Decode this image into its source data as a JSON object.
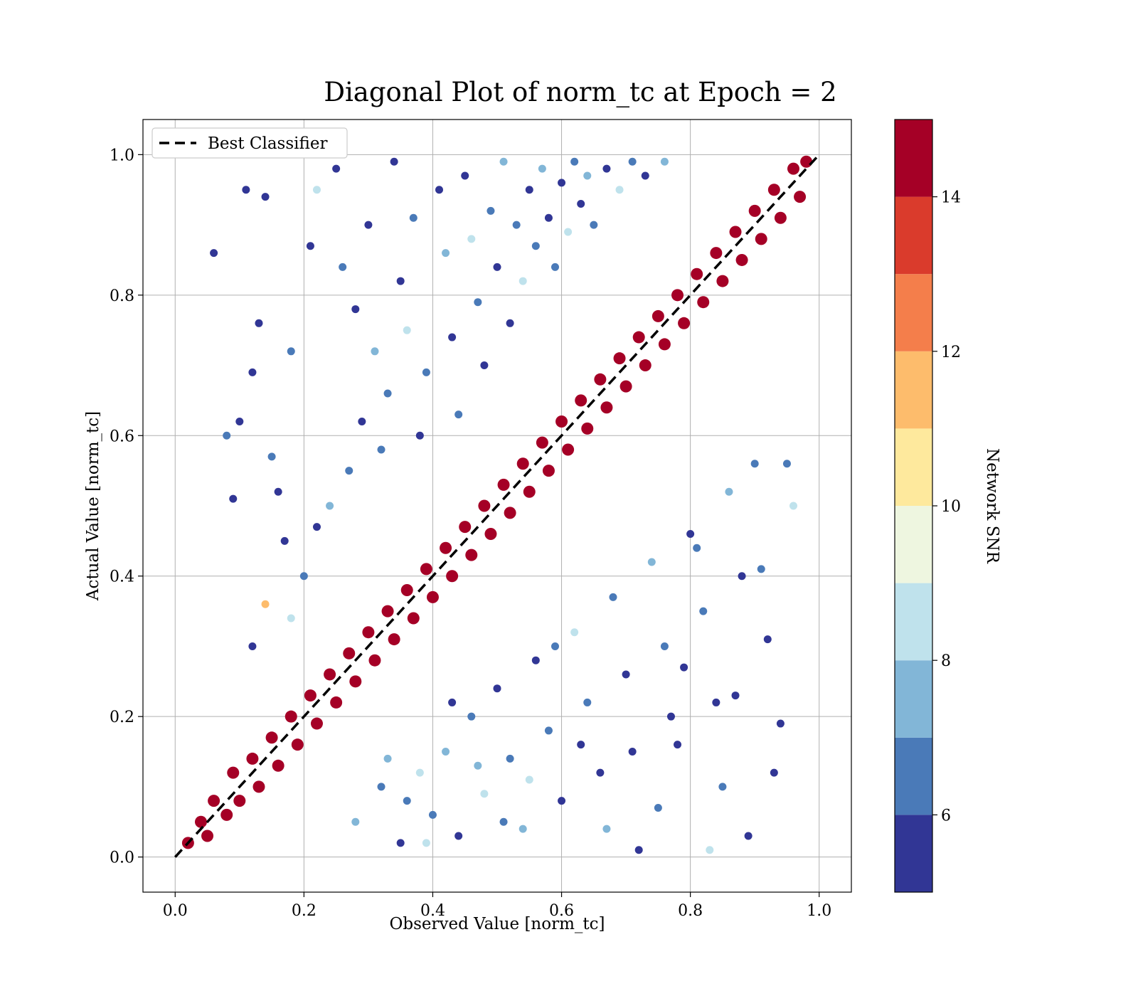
{
  "chart_data": {
    "type": "scatter",
    "title": "Diagonal Plot of norm_tc at Epoch = 2",
    "xlabel": "Observed Value [norm_tc]",
    "ylabel": "Actual Value [norm_tc]",
    "xlim": [
      -0.05,
      1.05
    ],
    "ylim": [
      -0.05,
      1.05
    ],
    "xticks": [
      "0.0",
      "0.2",
      "0.4",
      "0.6",
      "0.8",
      "1.0"
    ],
    "yticks": [
      "0.0",
      "0.2",
      "0.4",
      "0.6",
      "0.8",
      "1.0"
    ],
    "tick_values": [
      0.0,
      0.2,
      0.4,
      0.6,
      0.8,
      1.0
    ],
    "grid": true,
    "legend": {
      "position": "top-left",
      "entries": [
        {
          "label": "Best Classifier",
          "style": "black dashed line"
        }
      ]
    },
    "reference_line": {
      "name": "Best Classifier",
      "x": [
        0.0,
        1.0
      ],
      "y": [
        0.0,
        1.0
      ],
      "color": "#000000"
    },
    "colorbar": {
      "label": "Network SNR",
      "ticks": [
        "6",
        "8",
        "10",
        "12",
        "14"
      ],
      "tick_values": [
        6,
        8,
        10,
        12,
        14
      ],
      "range": [
        5,
        15
      ],
      "bands": [
        {
          "from": 5,
          "to": 6,
          "color": "#313695"
        },
        {
          "from": 6,
          "to": 7,
          "color": "#4a7ab8"
        },
        {
          "from": 7,
          "to": 8,
          "color": "#82b6d7"
        },
        {
          "from": 8,
          "to": 9,
          "color": "#bfe2ec"
        },
        {
          "from": 9,
          "to": 10,
          "color": "#eef6e0"
        },
        {
          "from": 10,
          "to": 11,
          "color": "#fee99d"
        },
        {
          "from": 11,
          "to": 12,
          "color": "#fdbc6c"
        },
        {
          "from": 12,
          "to": 13,
          "color": "#f47e4b"
        },
        {
          "from": 13,
          "to": 14,
          "color": "#da3b2c"
        },
        {
          "from": 14,
          "to": 15,
          "color": "#a50026"
        }
      ]
    },
    "series": [
      {
        "description": "dense diagonal band of high-SNR points along the x=y line",
        "points": [
          [
            0.02,
            0.02,
            15
          ],
          [
            0.04,
            0.05,
            15
          ],
          [
            0.05,
            0.03,
            15
          ],
          [
            0.06,
            0.08,
            15
          ],
          [
            0.08,
            0.06,
            15
          ],
          [
            0.09,
            0.12,
            15
          ],
          [
            0.1,
            0.08,
            15
          ],
          [
            0.12,
            0.14,
            15
          ],
          [
            0.13,
            0.1,
            15
          ],
          [
            0.15,
            0.17,
            15
          ],
          [
            0.16,
            0.13,
            15
          ],
          [
            0.18,
            0.2,
            15
          ],
          [
            0.19,
            0.16,
            15
          ],
          [
            0.21,
            0.23,
            15
          ],
          [
            0.22,
            0.19,
            15
          ],
          [
            0.24,
            0.26,
            15
          ],
          [
            0.25,
            0.22,
            15
          ],
          [
            0.27,
            0.29,
            15
          ],
          [
            0.28,
            0.25,
            15
          ],
          [
            0.3,
            0.32,
            15
          ],
          [
            0.31,
            0.28,
            15
          ],
          [
            0.33,
            0.35,
            15
          ],
          [
            0.34,
            0.31,
            15
          ],
          [
            0.36,
            0.38,
            15
          ],
          [
            0.37,
            0.34,
            15
          ],
          [
            0.39,
            0.41,
            15
          ],
          [
            0.4,
            0.37,
            15
          ],
          [
            0.42,
            0.44,
            15
          ],
          [
            0.43,
            0.4,
            15
          ],
          [
            0.45,
            0.47,
            15
          ],
          [
            0.46,
            0.43,
            15
          ],
          [
            0.48,
            0.5,
            15
          ],
          [
            0.49,
            0.46,
            15
          ],
          [
            0.51,
            0.53,
            15
          ],
          [
            0.52,
            0.49,
            15
          ],
          [
            0.54,
            0.56,
            15
          ],
          [
            0.55,
            0.52,
            15
          ],
          [
            0.57,
            0.59,
            15
          ],
          [
            0.58,
            0.55,
            15
          ],
          [
            0.6,
            0.62,
            15
          ],
          [
            0.61,
            0.58,
            15
          ],
          [
            0.63,
            0.65,
            15
          ],
          [
            0.64,
            0.61,
            15
          ],
          [
            0.66,
            0.68,
            15
          ],
          [
            0.67,
            0.64,
            15
          ],
          [
            0.69,
            0.71,
            15
          ],
          [
            0.7,
            0.67,
            15
          ],
          [
            0.72,
            0.74,
            15
          ],
          [
            0.73,
            0.7,
            15
          ],
          [
            0.75,
            0.77,
            15
          ],
          [
            0.76,
            0.73,
            15
          ],
          [
            0.78,
            0.8,
            15
          ],
          [
            0.79,
            0.76,
            15
          ],
          [
            0.81,
            0.83,
            15
          ],
          [
            0.82,
            0.79,
            15
          ],
          [
            0.84,
            0.86,
            15
          ],
          [
            0.85,
            0.82,
            15
          ],
          [
            0.87,
            0.89,
            15
          ],
          [
            0.88,
            0.85,
            15
          ],
          [
            0.9,
            0.92,
            15
          ],
          [
            0.91,
            0.88,
            15
          ],
          [
            0.93,
            0.95,
            15
          ],
          [
            0.94,
            0.91,
            15
          ],
          [
            0.96,
            0.98,
            15
          ],
          [
            0.97,
            0.94,
            15
          ],
          [
            0.98,
            0.99,
            15
          ]
        ]
      },
      {
        "description": "scattered lower-SNR points above the diagonal (upper-left region)",
        "points": [
          [
            0.06,
            0.86,
            5
          ],
          [
            0.11,
            0.95,
            5
          ],
          [
            0.14,
            0.94,
            5
          ],
          [
            0.13,
            0.76,
            5
          ],
          [
            0.12,
            0.69,
            5
          ],
          [
            0.1,
            0.62,
            5
          ],
          [
            0.08,
            0.6,
            6
          ],
          [
            0.09,
            0.51,
            5
          ],
          [
            0.15,
            0.57,
            6
          ],
          [
            0.16,
            0.52,
            5
          ],
          [
            0.18,
            0.72,
            6
          ],
          [
            0.21,
            0.87,
            5
          ],
          [
            0.22,
            0.95,
            8
          ],
          [
            0.25,
            0.98,
            5
          ],
          [
            0.26,
            0.84,
            6
          ],
          [
            0.28,
            0.78,
            5
          ],
          [
            0.3,
            0.9,
            5
          ],
          [
            0.31,
            0.72,
            7
          ],
          [
            0.33,
            0.66,
            6
          ],
          [
            0.34,
            0.99,
            5
          ],
          [
            0.35,
            0.82,
            5
          ],
          [
            0.36,
            0.75,
            8
          ],
          [
            0.37,
            0.91,
            6
          ],
          [
            0.38,
            0.6,
            5
          ],
          [
            0.39,
            0.69,
            6
          ],
          [
            0.41,
            0.95,
            5
          ],
          [
            0.42,
            0.86,
            7
          ],
          [
            0.43,
            0.74,
            5
          ],
          [
            0.44,
            0.63,
            6
          ],
          [
            0.45,
            0.97,
            5
          ],
          [
            0.46,
            0.88,
            8
          ],
          [
            0.47,
            0.79,
            6
          ],
          [
            0.48,
            0.7,
            5
          ],
          [
            0.49,
            0.92,
            6
          ],
          [
            0.5,
            0.84,
            5
          ],
          [
            0.51,
            0.99,
            7
          ],
          [
            0.52,
            0.76,
            5
          ],
          [
            0.53,
            0.9,
            6
          ],
          [
            0.54,
            0.82,
            8
          ],
          [
            0.55,
            0.95,
            5
          ],
          [
            0.56,
            0.87,
            6
          ],
          [
            0.57,
            0.98,
            7
          ],
          [
            0.58,
            0.91,
            5
          ],
          [
            0.59,
            0.84,
            6
          ],
          [
            0.6,
            0.96,
            5
          ],
          [
            0.61,
            0.89,
            8
          ],
          [
            0.62,
            0.99,
            6
          ],
          [
            0.63,
            0.93,
            5
          ],
          [
            0.64,
            0.97,
            7
          ],
          [
            0.65,
            0.9,
            6
          ],
          [
            0.67,
            0.98,
            5
          ],
          [
            0.69,
            0.95,
            8
          ],
          [
            0.71,
            0.99,
            6
          ],
          [
            0.73,
            0.97,
            5
          ],
          [
            0.76,
            0.99,
            7
          ],
          [
            0.2,
            0.4,
            6
          ],
          [
            0.22,
            0.47,
            5
          ],
          [
            0.18,
            0.34,
            8
          ],
          [
            0.27,
            0.55,
            6
          ],
          [
            0.29,
            0.62,
            5
          ],
          [
            0.24,
            0.5,
            7
          ],
          [
            0.32,
            0.58,
            6
          ],
          [
            0.17,
            0.45,
            5
          ],
          [
            0.14,
            0.36,
            11
          ],
          [
            0.12,
            0.3,
            5
          ]
        ]
      },
      {
        "description": "scattered lower-SNR points below the diagonal (lower-right region)",
        "points": [
          [
            0.28,
            0.05,
            7
          ],
          [
            0.32,
            0.1,
            6
          ],
          [
            0.35,
            0.02,
            5
          ],
          [
            0.38,
            0.12,
            8
          ],
          [
            0.4,
            0.06,
            6
          ],
          [
            0.42,
            0.15,
            7
          ],
          [
            0.44,
            0.03,
            5
          ],
          [
            0.46,
            0.2,
            6
          ],
          [
            0.48,
            0.09,
            8
          ],
          [
            0.5,
            0.24,
            5
          ],
          [
            0.52,
            0.14,
            6
          ],
          [
            0.54,
            0.04,
            7
          ],
          [
            0.56,
            0.28,
            5
          ],
          [
            0.58,
            0.18,
            6
          ],
          [
            0.6,
            0.08,
            5
          ],
          [
            0.62,
            0.32,
            8
          ],
          [
            0.64,
            0.22,
            6
          ],
          [
            0.66,
            0.12,
            5
          ],
          [
            0.68,
            0.37,
            6
          ],
          [
            0.7,
            0.26,
            5
          ],
          [
            0.72,
            0.01,
            5
          ],
          [
            0.74,
            0.42,
            7
          ],
          [
            0.76,
            0.3,
            6
          ],
          [
            0.78,
            0.16,
            5
          ],
          [
            0.8,
            0.46,
            5
          ],
          [
            0.82,
            0.35,
            6
          ],
          [
            0.84,
            0.22,
            5
          ],
          [
            0.86,
            0.52,
            7
          ],
          [
            0.88,
            0.4,
            5
          ],
          [
            0.9,
            0.56,
            6
          ],
          [
            0.92,
            0.31,
            5
          ],
          [
            0.94,
            0.19,
            5
          ],
          [
            0.95,
            0.56,
            6
          ],
          [
            0.96,
            0.5,
            8
          ],
          [
            0.89,
            0.03,
            5
          ],
          [
            0.85,
            0.1,
            6
          ],
          [
            0.83,
            0.01,
            8
          ],
          [
            0.79,
            0.27,
            5
          ],
          [
            0.75,
            0.07,
            6
          ],
          [
            0.71,
            0.15,
            5
          ],
          [
            0.67,
            0.04,
            7
          ],
          [
            0.63,
            0.16,
            5
          ],
          [
            0.59,
            0.3,
            6
          ],
          [
            0.55,
            0.11,
            8
          ],
          [
            0.51,
            0.05,
            6
          ],
          [
            0.47,
            0.13,
            7
          ],
          [
            0.43,
            0.22,
            5
          ],
          [
            0.39,
            0.02,
            8
          ],
          [
            0.36,
            0.08,
            6
          ],
          [
            0.33,
            0.14,
            7
          ],
          [
            0.87,
            0.23,
            5
          ],
          [
            0.91,
            0.41,
            6
          ],
          [
            0.93,
            0.12,
            5
          ],
          [
            0.81,
            0.44,
            6
          ],
          [
            0.77,
            0.2,
            5
          ]
        ]
      }
    ]
  }
}
